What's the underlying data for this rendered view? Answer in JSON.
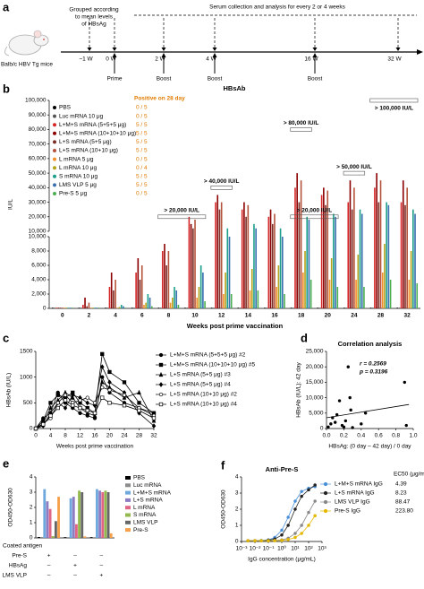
{
  "timeline": {
    "panel": "a",
    "cohort_note": [
      "Grouped according",
      "to mean levels",
      "of HBsAg"
    ],
    "sampling_note": "Serum collection and analysis for every 2 or 4 weeks",
    "mouse_label": "Balb/c HBV Tg mice",
    "points": [
      {
        "week": "~1 W"
      },
      {
        "week": "0 W",
        "event": "Prime"
      },
      {
        "week": "2 W",
        "event": "Boost"
      },
      {
        "week": "4 W",
        "event": "Boost"
      },
      {
        "week": "16 W",
        "event": "Boost"
      },
      {
        "week": "32 W"
      }
    ]
  },
  "chart_data": [
    {
      "panel": "b",
      "type": "strip",
      "title": "HBsAb",
      "y_label": "IU/L",
      "x_label": "Weeks post prime vaccination",
      "legend_header": "Positive on 28 day",
      "categories": [
        "0",
        "2",
        "4",
        "6",
        "8",
        "10",
        "12",
        "14",
        "16",
        "18",
        "20",
        "24",
        "28",
        "32"
      ],
      "ylim": [
        0,
        100000
      ],
      "axis_break": 10000,
      "yticks": [
        0,
        {
          "value": 2000,
          "label": "2,000"
        },
        {
          "value": 4000,
          "label": "4,000"
        },
        {
          "value": 6000,
          "label": "6,000"
        },
        {
          "value": 8000,
          "label": "8,000"
        },
        {
          "value": 10000,
          "label": "10,000"
        }
      ],
      "yticks_upper": [
        {
          "value": 10000,
          "label": "10,000"
        },
        {
          "value": 20000,
          "label": "20,000"
        },
        {
          "value": 30000,
          "label": "30,000"
        },
        {
          "value": 40000,
          "label": "40,000"
        },
        {
          "value": 50000,
          "label": "50,000"
        },
        {
          "value": 60000,
          "label": "60,000"
        },
        {
          "value": 70000,
          "label": "70,000"
        },
        {
          "value": 80000,
          "label": "80,000"
        },
        {
          "value": 90000,
          "label": "90,000"
        },
        {
          "value": 100000,
          "label": "100,000"
        }
      ],
      "series": [
        {
          "name": "PBS",
          "color": "#000000",
          "positive": "0 / 5",
          "values": [
            0,
            0,
            0,
            0,
            0,
            0,
            0,
            0,
            0,
            0,
            0,
            0,
            0,
            0
          ]
        },
        {
          "name": "Luc mRNA 10 μg",
          "color": "#555555",
          "positive": "0 / 5",
          "values": [
            0,
            0,
            0,
            0,
            0,
            0,
            0,
            0,
            0,
            0,
            0,
            0,
            0,
            0
          ]
        },
        {
          "name": "L+M+S mRNA (5+5+5 μg)",
          "color": "#d62728",
          "positive": "5 / 5",
          "values": [
            0,
            500,
            3000,
            5000,
            8000,
            20000,
            30000,
            25000,
            20000,
            40000,
            35000,
            30000,
            40000,
            30000
          ]
        },
        {
          "name": "L+M+S mRNA (10+10+10 μg)",
          "color": "#8b0000",
          "positive": "5 / 5",
          "values": [
            0,
            1500,
            5000,
            7000,
            9000,
            15000,
            35000,
            30000,
            25000,
            50000,
            40000,
            45000,
            50000,
            45000
          ]
        },
        {
          "name": "L+S mRNA (5+5 μg)",
          "color": "#7b2d26",
          "positive": "5 / 5",
          "values": [
            0,
            300,
            2500,
            4000,
            6000,
            12000,
            25000,
            20000,
            15000,
            30000,
            28000,
            25000,
            30000,
            28000
          ]
        },
        {
          "name": "L+S mRNA (10+10 μg)",
          "color": "#b5523b",
          "positive": "5 / 5",
          "values": [
            0,
            800,
            4000,
            6000,
            8000,
            18000,
            30000,
            28000,
            22000,
            45000,
            38000,
            40000,
            45000,
            40000
          ]
        },
        {
          "name": "L mRNA 5 μg",
          "color": "#f28e2b",
          "positive": "0 / 5",
          "values": [
            0,
            0,
            100,
            500,
            800,
            1500,
            2000,
            2500,
            3000,
            5000,
            4000,
            4000,
            5000,
            4000
          ]
        },
        {
          "name": "L mRNA 10 μg",
          "color": "#b5a21b",
          "positive": "0 / 4",
          "values": [
            0,
            0,
            200,
            800,
            1500,
            3000,
            5000,
            5500,
            6000,
            8000,
            7000,
            7500,
            9000,
            8000
          ]
        },
        {
          "name": "S mRNA 10 μg",
          "color": "#1b9e8a",
          "positive": "5 / 5",
          "values": [
            0,
            0,
            500,
            2000,
            3000,
            6000,
            12000,
            15000,
            12000,
            20000,
            22000,
            25000,
            30000,
            25000
          ]
        },
        {
          "name": "LMS VLP 5 μg",
          "color": "#3a6fb0",
          "positive": "5 / 5",
          "values": [
            0,
            0,
            300,
            1500,
            2500,
            5000,
            10000,
            12000,
            10000,
            18000,
            20000,
            22000,
            28000,
            22000
          ]
        },
        {
          "name": "Pre-S 5 μg",
          "color": "#4caf50",
          "positive": "0 / 5",
          "values": [
            0,
            0,
            100,
            300,
            500,
            1000,
            2000,
            2500,
            2000,
            4000,
            3000,
            3000,
            4000,
            3500
          ]
        }
      ],
      "annotations": [
        {
          "text": "> 20,000 IU/L",
          "x": [
            "8",
            "10"
          ],
          "y": 20000
        },
        {
          "text": "> 40,000 IU/L",
          "x": [
            "12",
            "12"
          ],
          "y": 40000
        },
        {
          "text": "> 80,000 IU/L",
          "x": [
            "18",
            "18"
          ],
          "y": 80000
        },
        {
          "text": "> 20,000 IU/L",
          "x": [
            "18",
            "20"
          ],
          "y": 20000
        },
        {
          "text": "> 50,000 IU/L",
          "x": [
            "24",
            "24"
          ],
          "y": 50000
        },
        {
          "text": "> 100,000 IU/L",
          "x": [
            "28",
            "32"
          ],
          "y": 100000
        }
      ]
    },
    {
      "panel": "c",
      "type": "line",
      "y_label": "HBsAb (IU/L)",
      "x_label": "Weeks post prime vaccination",
      "x": [
        0,
        2,
        4,
        6,
        8,
        10,
        12,
        14,
        16,
        18,
        20,
        24,
        28,
        32
      ],
      "xlim": [
        0,
        32
      ],
      "xticks": [
        0,
        4,
        8,
        12,
        16,
        20,
        24,
        28,
        32
      ],
      "ylim": [
        0,
        1500
      ],
      "yticks": [
        0,
        500,
        1000,
        1500
      ],
      "series": [
        {
          "name": "L+M+S mRNA (5+5+5 μg) #2",
          "color": "#000000",
          "marker": "circle",
          "values": [
            0,
            200,
            300,
            700,
            500,
            400,
            300,
            250,
            200,
            1000,
            700,
            500,
            400,
            300
          ]
        },
        {
          "name": "L+M+S mRNA (10+10+10 μg) #5",
          "color": "#000000",
          "marker": "square",
          "values": [
            0,
            150,
            500,
            650,
            600,
            700,
            500,
            400,
            300,
            1450,
            1100,
            900,
            500,
            300
          ]
        },
        {
          "name": "L+S mRNA (5+5 μg) #3",
          "color": "#000000",
          "marker": "triangle",
          "values": [
            0,
            100,
            400,
            550,
            700,
            600,
            400,
            300,
            250,
            900,
            800,
            600,
            700,
            150
          ]
        },
        {
          "name": "L+S mRNA (5+5 μg) #4",
          "color": "#000000",
          "marker": "diamond",
          "values": [
            0,
            50,
            300,
            500,
            400,
            650,
            600,
            500,
            450,
            1200,
            900,
            700,
            300,
            50
          ]
        },
        {
          "name": "L+S mRNA (10+10 μg) #2",
          "color": "#000000",
          "marker": "circle-open",
          "values": [
            0,
            100,
            200,
            500,
            650,
            500,
            550,
            600,
            500,
            800,
            750,
            650,
            400,
            250
          ]
        },
        {
          "name": "L+S mRNA (10+10 μg) #4",
          "color": "#000000",
          "marker": "square-open",
          "values": [
            0,
            80,
            250,
            400,
            550,
            450,
            400,
            350,
            300,
            600,
            500,
            450,
            350,
            200
          ]
        }
      ]
    },
    {
      "panel": "d",
      "type": "scatter",
      "title": "Correlation analysis",
      "y_label": "HBsAb (IU/L): 42 day",
      "x_label": "HBsAg: (0 day – 42 day) / 0 day",
      "x": [
        0.02,
        0.05,
        0.07,
        0.1,
        0.12,
        0.15,
        0.18,
        0.2,
        0.22,
        0.25,
        0.27,
        0.28,
        0.3,
        0.4,
        0.45,
        0.9,
        0.92
      ],
      "values": [
        500,
        1500,
        3500,
        2000,
        4500,
        9000,
        1000,
        500,
        2500,
        20000,
        10000,
        6000,
        300,
        1500,
        5000,
        15000,
        1000
      ],
      "color": "#000000",
      "xlim": [
        0,
        1
      ],
      "xticks": [
        {
          "value": 0,
          "label": "0.0"
        },
        0.2,
        0.4,
        0.6,
        0.8,
        {
          "value": 1,
          "label": "1.0"
        }
      ],
      "ylim": [
        0,
        25000
      ],
      "yticks": [
        0,
        {
          "value": 5000,
          "label": "5,000"
        },
        {
          "value": 10000,
          "label": "10,000"
        },
        {
          "value": 15000,
          "label": "15,000"
        },
        {
          "value": 20000,
          "label": "20,000"
        },
        {
          "value": 25000,
          "label": "25,000"
        }
      ],
      "trendline": {
        "x": [
          0,
          0.95
        ],
        "y": [
          3500,
          7800
        ]
      },
      "annotations": [
        "r = 0.2569",
        "p = 0.3196"
      ]
    },
    {
      "panel": "e",
      "type": "bar",
      "y_label": "OD450-OD630",
      "ylim": [
        0,
        4
      ],
      "yticks": [
        0,
        1,
        2,
        3,
        4
      ],
      "series": [
        {
          "name": "PBS",
          "color": "#000000",
          "values": [
            0.06,
            0.05,
            0.05
          ]
        },
        {
          "name": "Luc mRNA",
          "color": "#8c8c8c",
          "values": [
            0.06,
            0.05,
            0.05
          ]
        },
        {
          "name": "L+M+S mRNA",
          "color": "#6fa8dc",
          "values": [
            3.2,
            2.6,
            3.2
          ]
        },
        {
          "name": "L+S mRNA",
          "color": "#8e7cc3",
          "values": [
            2.4,
            2.7,
            3.1
          ]
        },
        {
          "name": "L mRNA",
          "color": "#e06688",
          "values": [
            1.9,
            0.9,
            3.0
          ]
        },
        {
          "name": "S mRNA",
          "color": "#93b84d",
          "values": [
            0.12,
            3.1,
            3.1
          ]
        },
        {
          "name": "LMS VLP",
          "color": "#666666",
          "values": [
            1.1,
            3.0,
            3.0
          ]
        },
        {
          "name": "Pre-S",
          "color": "#f6a04b",
          "values": [
            2.7,
            0.1,
            0.3
          ]
        }
      ],
      "antigen_table": {
        "title": "Coated antigen",
        "rows": [
          {
            "label": "Pre-S",
            "cells": [
              "+",
              "–",
              "–"
            ]
          },
          {
            "label": "HBsAg",
            "cells": [
              "–",
              "+",
              "–"
            ]
          },
          {
            "label": "LMS VLP",
            "cells": [
              "–",
              "–",
              "+"
            ]
          }
        ]
      }
    },
    {
      "panel": "f",
      "type": "line",
      "title": "Anti-Pre-S",
      "y_label": "OD450-OD630",
      "x_label": "IgG concentration (μg/mL)",
      "xscale": "log",
      "legend_header": "EC50 (μg/mL)",
      "x": [
        0.003,
        0.01,
        0.03,
        0.1,
        0.3,
        1,
        3,
        10,
        30,
        100,
        300
      ],
      "xlim": [
        0.001,
        1000
      ],
      "xticks": [
        {
          "value": 0.001,
          "label": "10⁻³"
        },
        {
          "value": 0.01,
          "label": "10⁻²"
        },
        {
          "value": 0.1,
          "label": "10⁻¹"
        },
        {
          "value": 1,
          "label": "10⁰"
        },
        {
          "value": 10,
          "label": "10¹"
        },
        {
          "value": 100,
          "label": "10²"
        },
        {
          "value": 1000,
          "label": "10³"
        }
      ],
      "ylim": [
        0,
        4
      ],
      "yticks": [
        0,
        1,
        2,
        3,
        4
      ],
      "series": [
        {
          "name": "L+M+S mRNA IgG",
          "color": "#4a90d9",
          "ec50": 4.39,
          "values": [
            0.05,
            0.05,
            0.06,
            0.1,
            0.25,
            0.7,
            1.5,
            2.5,
            3.1,
            3.3,
            3.4
          ]
        },
        {
          "name": "L+S mRNA IgG",
          "color": "#222222",
          "ec50": 8.23,
          "values": [
            0.05,
            0.05,
            0.05,
            0.08,
            0.15,
            0.4,
            1.0,
            2.0,
            2.8,
            3.2,
            3.5
          ]
        },
        {
          "name": "LMS VLP IgG",
          "color": "#888888",
          "ec50": 88.47,
          "values": [
            0.05,
            0.05,
            0.05,
            0.05,
            0.06,
            0.1,
            0.2,
            0.5,
            1.0,
            1.8,
            2.5
          ]
        },
        {
          "name": "Pre-S IgG",
          "color": "#e5b800",
          "ec50": {
            "value": 223.8,
            "label": "223.80"
          },
          "values": [
            0.05,
            0.05,
            0.05,
            0.05,
            0.05,
            0.07,
            0.12,
            0.25,
            0.5,
            1.0,
            1.6
          ]
        }
      ]
    }
  ]
}
